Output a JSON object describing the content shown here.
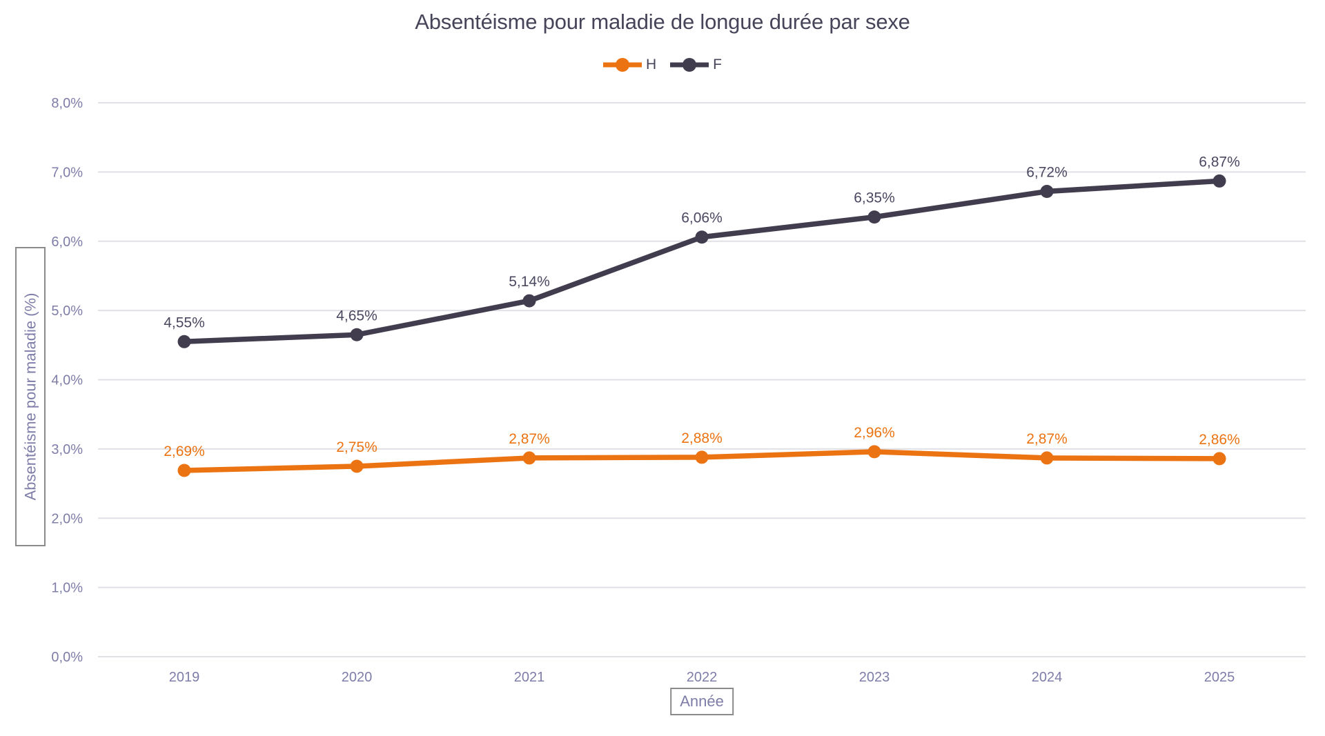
{
  "styles": {
    "background": "#FFFFFF",
    "grid_color": "#E0E0E7",
    "tick_color": "#7E7DA8",
    "title_color": "#454459",
    "axis_box_border_color": "#8A8A8A",
    "h_color": "#EB7312",
    "f_color": "#413D4E"
  },
  "chart_data": {
    "type": "line",
    "title": "Absentéisme pour maladie de longue durée par sexe",
    "xlabel": "Année",
    "ylabel": "Absentéisme pour maladie (%)",
    "categories": [
      "2019",
      "2020",
      "2021",
      "2022",
      "2023",
      "2024",
      "2025"
    ],
    "series": [
      {
        "name": "H",
        "color": "#EB7312",
        "label_color": "#EB7312",
        "values": [
          2.69,
          2.75,
          2.87,
          2.88,
          2.96,
          2.87,
          2.86
        ],
        "point_labels": [
          "2,69%",
          "2,75%",
          "2,87%",
          "2,88%",
          "2,96%",
          "2,87%",
          "2,86%"
        ]
      },
      {
        "name": "F",
        "color": "#413D4E",
        "label_color": "#4A4860",
        "values": [
          4.55,
          4.65,
          5.14,
          6.06,
          6.35,
          6.72,
          6.87
        ],
        "point_labels": [
          "4,55%",
          "4,65%",
          "5,14%",
          "6,06%",
          "6,35%",
          "6,72%",
          "6,87%"
        ]
      }
    ],
    "ylim": [
      0,
      8
    ],
    "ytick_labels": [
      "0,0%",
      "1,0%",
      "2,0%",
      "3,0%",
      "4,0%",
      "5,0%",
      "6,0%",
      "7,0%",
      "8,0%"
    ],
    "grid": true,
    "legend_position": "top-center"
  }
}
